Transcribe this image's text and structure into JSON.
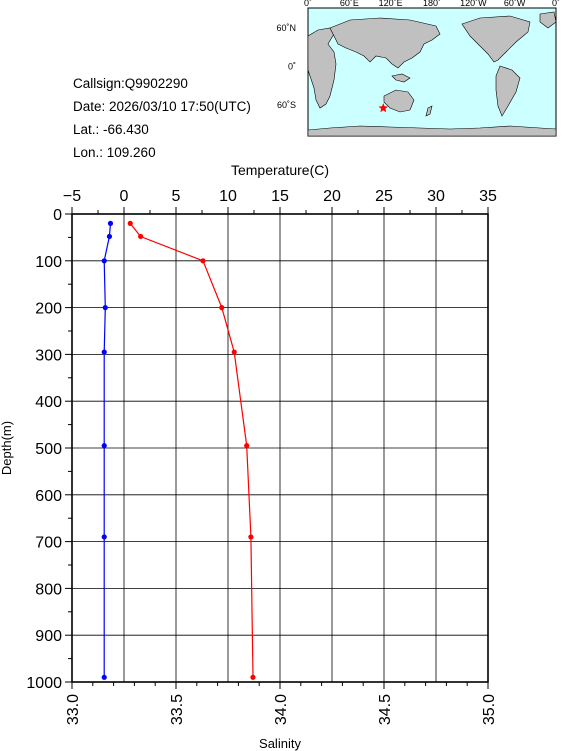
{
  "info": {
    "callsign": "Callsign:Q9902290",
    "date": "Date:  2026/03/10 17:50(UTC)",
    "lat": "Lat.:  -66.430",
    "lon": "Lon.:  109.260"
  },
  "map": {
    "top_ticks": [
      "0˚",
      "60˚E",
      "120˚E",
      "180˚",
      "120˚W",
      "60˚W",
      "0˚"
    ],
    "left_ticks": [
      "60˚N",
      "0˚",
      "60˚S"
    ],
    "ocean_color": "#ccffff",
    "land_color": "#c0c0c0",
    "marker": {
      "lat": -66.43,
      "lon": 109.26,
      "color": "#ff0000",
      "icon": "star-icon"
    }
  },
  "chart_data": {
    "type": "line",
    "temperature_axis": {
      "label": "Temperature(C)",
      "range": [
        -5,
        35
      ],
      "ticks": [
        "−5",
        "0",
        "5",
        "10",
        "15",
        "20",
        "25",
        "30",
        "35"
      ]
    },
    "salinity_axis": {
      "label": "Salinity",
      "range": [
        33.0,
        35.0
      ],
      "ticks": [
        "33.0",
        "33.5",
        "34.0",
        "34.5",
        "35.0"
      ]
    },
    "depth_axis": {
      "label": "Depth(m)",
      "range": [
        0,
        1000
      ],
      "ticks": [
        "0",
        "100",
        "200",
        "300",
        "400",
        "500",
        "600",
        "700",
        "800",
        "900",
        "1000"
      ]
    },
    "grid": true,
    "series": [
      {
        "key": "temperature",
        "axis": "temperature",
        "color": "#0000ff",
        "points": [
          [
            -1.3,
            20
          ],
          [
            -1.4,
            48
          ],
          [
            -1.9,
            100
          ],
          [
            -1.8,
            200
          ],
          [
            -1.9,
            295
          ],
          [
            -1.9,
            495
          ],
          [
            -1.9,
            690
          ],
          [
            -1.9,
            990
          ]
        ]
      },
      {
        "key": "salinity",
        "axis": "salinity",
        "color": "#ff0000",
        "points": [
          [
            33.28,
            20
          ],
          [
            33.33,
            48
          ],
          [
            33.63,
            100
          ],
          [
            33.72,
            200
          ],
          [
            33.78,
            295
          ],
          [
            33.84,
            495
          ],
          [
            33.86,
            690
          ],
          [
            33.87,
            990
          ]
        ]
      }
    ]
  }
}
